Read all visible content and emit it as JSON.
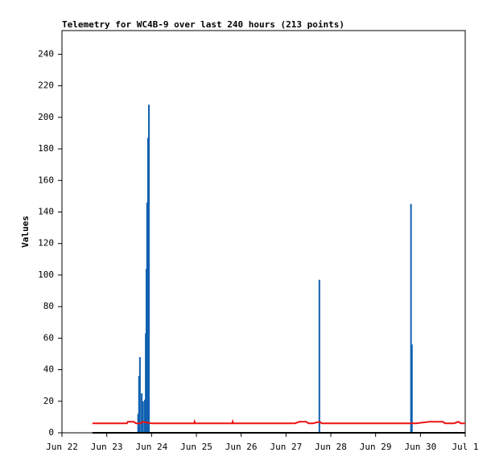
{
  "chart_data": {
    "type": "line",
    "title": "Telemetry for WC4B-9 over last 240 hours (213 points)",
    "y_label": "Values",
    "xlim": [
      0,
      9
    ],
    "ylim": [
      0,
      255
    ],
    "xticks": [
      {
        "value": 0,
        "label": "Jun 22"
      },
      {
        "value": 1,
        "label": "Jun 23"
      },
      {
        "value": 2,
        "label": "Jun 24"
      },
      {
        "value": 3,
        "label": "Jun 25"
      },
      {
        "value": 4,
        "label": "Jun 26"
      },
      {
        "value": 5,
        "label": "Jun 27"
      },
      {
        "value": 6,
        "label": "Jun 28"
      },
      {
        "value": 7,
        "label": "Jun 29"
      },
      {
        "value": 8,
        "label": "Jun 30"
      },
      {
        "value": 9,
        "label": "Jul 1"
      }
    ],
    "yticks": [
      0,
      20,
      40,
      60,
      80,
      100,
      120,
      140,
      160,
      180,
      200,
      220,
      240
    ],
    "series": [
      {
        "kind": "impulse",
        "color": "#1060b0",
        "x": [
          1.7,
          1.72,
          1.74,
          1.78,
          1.81,
          1.85,
          1.87,
          1.885,
          1.9,
          1.92,
          1.94,
          5.745,
          7.79,
          7.81
        ],
        "values": [
          12,
          36,
          48,
          25,
          20,
          21,
          63,
          104,
          146,
          187,
          208,
          97,
          145,
          56
        ]
      },
      {
        "kind": "line",
        "color": "#ee1111",
        "x": [
          0.68,
          1.45,
          1.47,
          1.6,
          1.65,
          1.75,
          1.8,
          2.0,
          2.95,
          2.96,
          2.97,
          3.8,
          3.81,
          3.82,
          5.0,
          5.2,
          5.3,
          5.45,
          5.5,
          5.6,
          5.75,
          5.8,
          7.9,
          8.2,
          8.5,
          8.55,
          8.75,
          8.85,
          8.9,
          9.0
        ],
        "values": [
          6,
          6,
          7,
          7,
          6,
          6,
          7,
          6,
          6,
          7,
          6,
          6,
          7,
          6,
          6,
          6,
          7,
          7,
          6,
          6,
          7,
          6,
          6,
          7,
          7,
          6,
          6,
          7,
          6,
          6
        ]
      },
      {
        "kind": "line",
        "color": "#000000",
        "x": [
          0.68,
          9.0
        ],
        "values": [
          0,
          0
        ]
      }
    ]
  }
}
